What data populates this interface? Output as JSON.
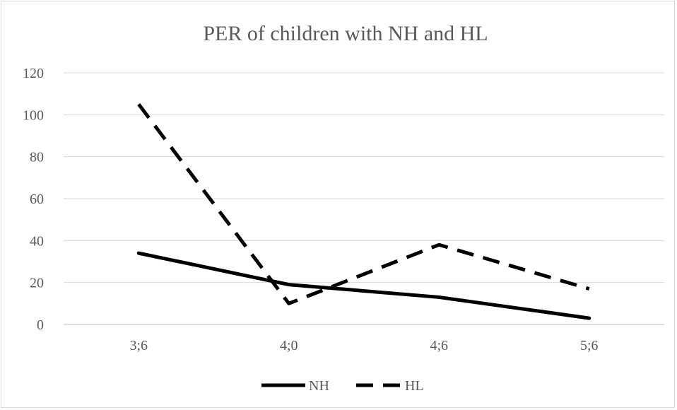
{
  "chart_data": {
    "type": "line",
    "title": "PER of children with NH and HL",
    "xlabel": "",
    "ylabel": "",
    "categories": [
      "3;6",
      "4;0",
      "4;6",
      "5;6"
    ],
    "ylim": [
      0,
      120
    ],
    "yticks": [
      0,
      20,
      40,
      60,
      80,
      100,
      120
    ],
    "grid": true,
    "legend_position": "bottom",
    "series": [
      {
        "name": "NH",
        "values": [
          34,
          19,
          13,
          3
        ],
        "color": "#000000",
        "style": "solid"
      },
      {
        "name": "HL",
        "values": [
          105,
          10,
          38,
          17
        ],
        "color": "#000000",
        "style": "dashed"
      }
    ]
  }
}
